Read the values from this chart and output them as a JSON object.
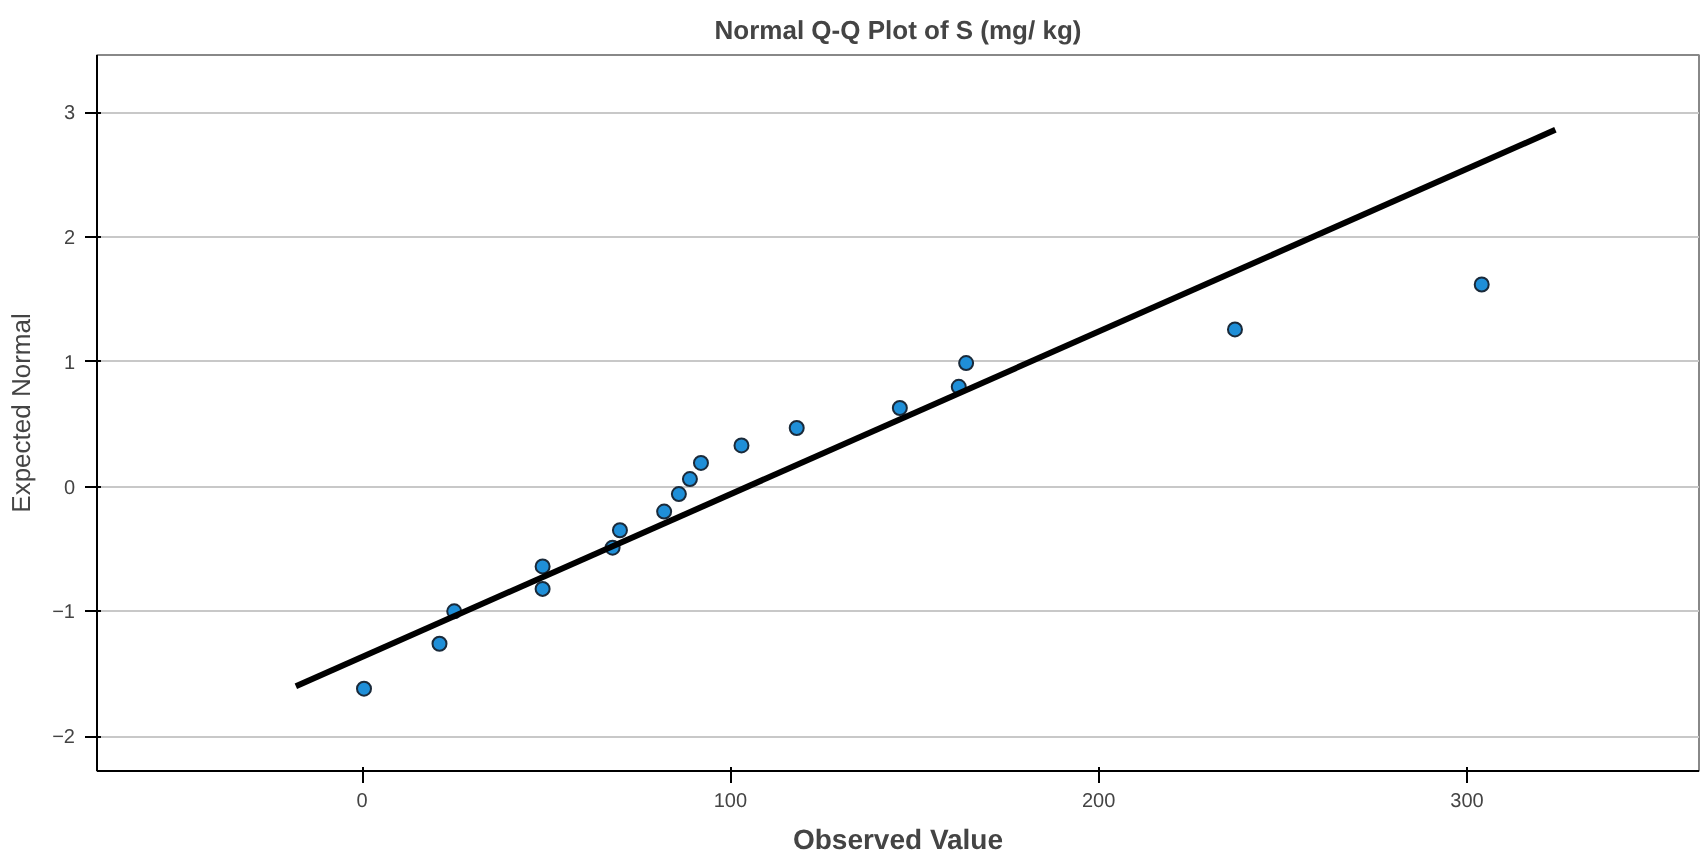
{
  "chart_data": {
    "type": "scatter",
    "title": "Normal Q-Q Plot of S (mg/ kg)",
    "xlabel": "Observed Value",
    "ylabel": "Expected Normal",
    "xlim": [
      -72,
      363
    ],
    "ylim": [
      -2.28,
      3.46
    ],
    "xticks": [
      0,
      100,
      200,
      300
    ],
    "yticks": [
      -2,
      -1,
      0,
      1,
      2,
      3
    ],
    "grid": "y",
    "series": [
      {
        "marker": "circle",
        "color": "#1f8fd8",
        "x": [
          0.5,
          21,
          25,
          49,
          49,
          68,
          70,
          82,
          86,
          89,
          92,
          103,
          118,
          146,
          162,
          164,
          237,
          304
        ],
        "values": [
          -1.62,
          -1.26,
          -1.0,
          -0.64,
          -0.82,
          -0.49,
          -0.35,
          -0.2,
          -0.06,
          0.06,
          0.19,
          0.33,
          0.47,
          0.63,
          0.8,
          0.99,
          1.26,
          1.62
        ]
      },
      {
        "type": "line",
        "marker": "none",
        "color": "#000000",
        "x": [
          -18,
          324
        ],
        "values": [
          -1.6,
          2.86
        ]
      }
    ]
  }
}
